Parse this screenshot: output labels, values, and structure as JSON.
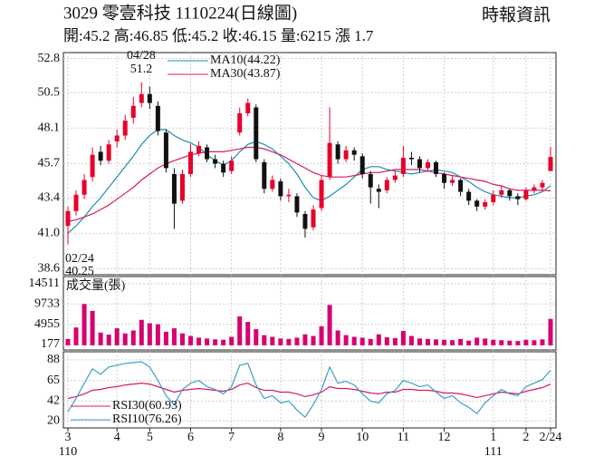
{
  "header": {
    "title": "3029  零壹科技 1110224(日線圖)",
    "source": "時報資訊",
    "summary": "開:45.2 高:46.85 低:45.2 收:46.15 量:6215 漲 1.7"
  },
  "chart_data": [
    {
      "type": "candlestick",
      "categories": [
        "3",
        null,
        null,
        null,
        null,
        null,
        "4",
        null,
        null,
        null,
        "5",
        null,
        null,
        null,
        null,
        "6",
        null,
        null,
        null,
        null,
        "7",
        null,
        null,
        null,
        null,
        null,
        "8",
        null,
        null,
        null,
        null,
        "9",
        null,
        null,
        null,
        null,
        "10",
        null,
        null,
        null,
        null,
        "11",
        null,
        null,
        null,
        null,
        "12",
        null,
        null,
        null,
        null,
        null,
        "1",
        null,
        null,
        null,
        "2",
        null,
        null,
        "2/24"
      ],
      "year_labels": [
        "110",
        null,
        null,
        null,
        null,
        null,
        null,
        null,
        null,
        null,
        null,
        null,
        null,
        null,
        null,
        null,
        null,
        null,
        null,
        null,
        null,
        null,
        null,
        null,
        null,
        null,
        null,
        null,
        null,
        null,
        null,
        null,
        null,
        null,
        null,
        null,
        null,
        null,
        null,
        null,
        null,
        null,
        null,
        null,
        null,
        null,
        null,
        null,
        null,
        null,
        null,
        null,
        "111",
        null,
        null,
        null,
        null,
        null,
        null,
        null
      ],
      "candles": [
        [
          41.5,
          42.8,
          40.25,
          42.5
        ],
        [
          42.5,
          43.9,
          42.2,
          43.6
        ],
        [
          43.6,
          45.0,
          43.3,
          44.6
        ],
        [
          44.8,
          46.8,
          44.5,
          46.3
        ],
        [
          46.5,
          46.9,
          45.6,
          45.9
        ],
        [
          45.9,
          47.3,
          45.7,
          47.0
        ],
        [
          47.2,
          48.0,
          46.8,
          47.6
        ],
        [
          47.6,
          49.0,
          47.3,
          48.6
        ],
        [
          48.8,
          50.2,
          48.4,
          49.6
        ],
        [
          49.8,
          51.2,
          49.5,
          50.4
        ],
        [
          50.4,
          50.9,
          49.4,
          49.8
        ],
        [
          49.6,
          49.9,
          47.6,
          47.9
        ],
        [
          47.8,
          48.0,
          45.1,
          45.4
        ],
        [
          45.0,
          45.4,
          41.3,
          43.0
        ],
        [
          43.2,
          45.3,
          43.0,
          45.0
        ],
        [
          45.0,
          47.0,
          44.8,
          46.5
        ],
        [
          46.4,
          47.2,
          46.2,
          46.9
        ],
        [
          46.8,
          47.0,
          45.8,
          46.0
        ],
        [
          46.0,
          46.3,
          45.4,
          45.7
        ],
        [
          45.7,
          45.9,
          44.8,
          45.1
        ],
        [
          45.2,
          46.2,
          45.0,
          45.9
        ],
        [
          47.8,
          49.5,
          47.6,
          49.1
        ],
        [
          49.1,
          50.1,
          48.9,
          49.8
        ],
        [
          49.5,
          49.7,
          45.8,
          46.0
        ],
        [
          45.8,
          46.0,
          43.7,
          44.0
        ],
        [
          44.0,
          44.9,
          43.8,
          44.6
        ],
        [
          44.5,
          44.7,
          43.2,
          43.5
        ],
        [
          43.5,
          44.0,
          43.1,
          43.6
        ],
        [
          43.5,
          43.7,
          42.1,
          42.4
        ],
        [
          42.3,
          42.5,
          40.7,
          41.3
        ],
        [
          41.4,
          42.9,
          41.2,
          42.6
        ],
        [
          42.7,
          44.9,
          42.5,
          44.6
        ],
        [
          44.8,
          49.5,
          44.6,
          47.1
        ],
        [
          47.0,
          47.2,
          45.7,
          46.0
        ],
        [
          46.0,
          46.9,
          45.8,
          46.6
        ],
        [
          46.6,
          46.8,
          45.9,
          46.3
        ],
        [
          46.2,
          46.4,
          44.7,
          45.0
        ],
        [
          45.0,
          45.2,
          43.0,
          44.1
        ],
        [
          44.0,
          44.3,
          42.7,
          43.8
        ],
        [
          43.9,
          44.8,
          43.7,
          44.6
        ],
        [
          44.6,
          45.2,
          44.4,
          44.9
        ],
        [
          45.0,
          46.9,
          44.8,
          46.1
        ],
        [
          46.1,
          46.5,
          45.6,
          46.0
        ],
        [
          46.0,
          46.2,
          45.1,
          45.4
        ],
        [
          45.4,
          46.0,
          45.2,
          45.8
        ],
        [
          45.8,
          45.9,
          44.8,
          45.0
        ],
        [
          45.0,
          45.1,
          44.0,
          44.4
        ],
        [
          44.4,
          44.9,
          44.2,
          44.6
        ],
        [
          44.6,
          44.7,
          43.5,
          43.8
        ],
        [
          43.8,
          44.0,
          42.9,
          43.2
        ],
        [
          43.2,
          43.3,
          42.5,
          42.8
        ],
        [
          42.8,
          43.3,
          42.6,
          43.1
        ],
        [
          43.1,
          43.9,
          42.9,
          43.6
        ],
        [
          43.6,
          44.2,
          43.4,
          43.9
        ],
        [
          43.9,
          44.0,
          43.2,
          43.5
        ],
        [
          43.5,
          43.7,
          42.9,
          43.3
        ],
        [
          43.3,
          44.1,
          43.2,
          43.9
        ],
        [
          43.9,
          44.3,
          43.7,
          44.1
        ],
        [
          44.1,
          44.6,
          43.9,
          44.4
        ],
        [
          45.2,
          46.85,
          45.2,
          46.15
        ]
      ],
      "up_color": "#e8002a",
      "down_color": "#111111",
      "series": [
        {
          "name": "MA10(44.22)",
          "color": "#1b8fb5",
          "values": [
            41.0,
            41.5,
            42.1,
            42.8,
            43.4,
            44.1,
            44.8,
            45.5,
            46.2,
            47.0,
            47.6,
            48.0,
            48.0,
            47.6,
            47.3,
            47.1,
            46.8,
            46.3,
            45.9,
            45.6,
            45.9,
            46.5,
            47.0,
            47.2,
            47.0,
            46.7,
            46.2,
            45.7,
            45.0,
            44.1,
            43.4,
            43.2,
            43.5,
            43.9,
            44.3,
            44.8,
            45.3,
            45.5,
            45.5,
            45.3,
            45.2,
            45.1,
            45.0,
            45.1,
            45.2,
            45.3,
            45.2,
            45.1,
            44.8,
            44.5,
            44.1,
            43.8,
            43.6,
            43.5,
            43.4,
            43.4,
            43.5,
            43.6,
            43.8,
            44.22
          ]
        },
        {
          "name": "MA30(43.87)",
          "color": "#d81b60",
          "values": [
            41.8,
            41.9,
            42.1,
            42.3,
            42.6,
            42.9,
            43.3,
            43.7,
            44.1,
            44.6,
            45.0,
            45.4,
            45.7,
            45.9,
            46.1,
            46.3,
            46.4,
            46.5,
            46.5,
            46.5,
            46.6,
            46.7,
            46.8,
            46.8,
            46.7,
            46.5,
            46.3,
            46.0,
            45.7,
            45.4,
            45.1,
            44.9,
            44.8,
            44.8,
            44.8,
            44.9,
            45.0,
            45.1,
            45.1,
            45.2,
            45.3,
            45.3,
            45.3,
            45.3,
            45.2,
            45.1,
            45.0,
            44.9,
            44.8,
            44.7,
            44.6,
            44.5,
            44.3,
            44.2,
            44.0,
            43.9,
            43.9,
            43.9,
            43.9,
            43.87
          ]
        }
      ],
      "annotations": [
        {
          "label": "04/28",
          "value": 51.2
        },
        {
          "label": "02/24",
          "value": 40.25
        }
      ],
      "ylim": [
        38.2,
        53.2
      ],
      "yticks": [
        52.8,
        50.5,
        48.1,
        45.7,
        43.4,
        {
          "value": 41,
          "label": "41.0"
        },
        38.6
      ],
      "grid": true
    },
    {
      "type": "bar",
      "title": "成交量(張)",
      "color": "#d6006f",
      "values": [
        1500,
        4200,
        9733,
        8100,
        3000,
        2500,
        4000,
        2800,
        3500,
        6000,
        5200,
        4955,
        3200,
        4000,
        2800,
        2200,
        1800,
        1600,
        1400,
        1300,
        2000,
        6800,
        5500,
        3800,
        2400,
        2000,
        1600,
        1500,
        1800,
        2600,
        2200,
        4500,
        9500,
        3500,
        2400,
        2000,
        1800,
        1500,
        2600,
        1900,
        1700,
        3400,
        2200,
        1600,
        1500,
        1400,
        1300,
        1200,
        1500,
        1100,
        1800,
        1600,
        1300,
        1200,
        1100,
        1000,
        1300,
        1200,
        1400,
        6215
      ],
      "ylim": [
        -1100,
        16200
      ],
      "yticks": [
        14511,
        9733,
        4955,
        177
      ],
      "grid": true
    },
    {
      "type": "line",
      "series": [
        {
          "name": "RSI30(60.93)",
          "color": "#d81b60",
          "values": [
            45,
            47,
            50,
            54,
            55,
            57,
            58,
            60,
            61,
            62,
            61,
            58,
            55,
            52,
            54,
            55,
            56,
            55,
            54,
            53,
            55,
            60,
            62,
            57,
            54,
            54,
            52,
            52,
            50,
            47,
            49,
            52,
            58,
            56,
            56,
            55,
            53,
            51,
            50,
            52,
            52,
            55,
            55,
            54,
            54,
            53,
            51,
            51,
            50,
            48,
            46,
            48,
            50,
            52,
            51,
            50,
            53,
            55,
            57,
            60.93
          ]
        },
        {
          "name": "RSI10(76.26)",
          "color": "#3a9fc8",
          "values": [
            30,
            45,
            62,
            78,
            72,
            80,
            82,
            84,
            85,
            86,
            80,
            65,
            48,
            38,
            55,
            62,
            65,
            58,
            55,
            50,
            58,
            82,
            84,
            60,
            45,
            48,
            40,
            42,
            32,
            24,
            38,
            55,
            80,
            62,
            64,
            60,
            50,
            42,
            40,
            50,
            54,
            65,
            62,
            58,
            60,
            52,
            45,
            48,
            40,
            35,
            28,
            40,
            48,
            55,
            50,
            48,
            58,
            62,
            66,
            76.26
          ]
        }
      ],
      "ylim": [
        12,
        97
      ],
      "yticks": [
        88,
        65,
        42,
        20
      ],
      "grid": true
    }
  ]
}
